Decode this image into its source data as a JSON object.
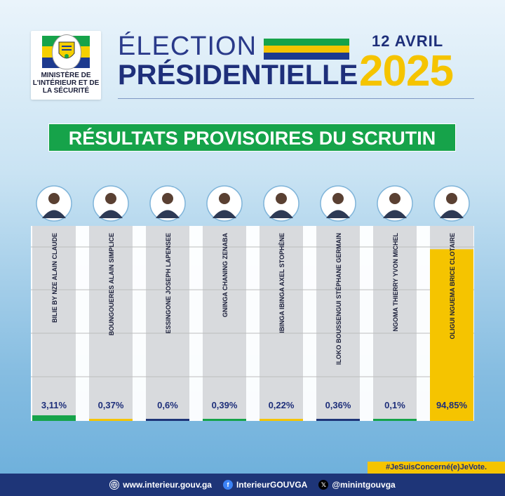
{
  "logo": {
    "seal_text": "RÉPUBLIQUE GABONAISE",
    "ministry": "MINISTÈRE DE L'INTÉRIEUR ET DE LA SÉCURITÉ"
  },
  "header": {
    "title_line1": "ÉLECTION",
    "title_line2": "PRÉSIDENTIELLE",
    "date": "12 AVRIL",
    "year": "2025"
  },
  "colors": {
    "green": "#16a34a",
    "yellow": "#f5c400",
    "blue": "#1d3a8f",
    "navy": "#1e3578"
  },
  "chart_data": {
    "type": "bar",
    "title": "RÉSULTATS PROVISOIRES DU SCRUTIN",
    "unit": "%",
    "categories": [
      "BILIE BY NZE ALAIN CLAUDE",
      "BOUNGOUERES ALAIN SIMPLICE",
      "ESSINGONE JOSEPH LAPENSEE",
      "GNINGA CHANING ZENABA",
      "IBINGA IBINGA AXEL STOPHÈNE",
      "ILOKO BOUSSENGUI STÉPHANE GERMAIN",
      "NGOMA THIERRY YVON MICHEL",
      "OLIGUI NGUEMA BRICE CLOTAIRE"
    ],
    "values": [
      3.11,
      0.37,
      0.6,
      0.39,
      0.22,
      0.36,
      0.1,
      94.85
    ],
    "labels": [
      "3,11%",
      "0,37%",
      "0,6%",
      "0,39%",
      "0,22%",
      "0,36%",
      "0,1%",
      "94,85%"
    ],
    "bar_colors": [
      "#16a34a",
      "#f5c400",
      "#1e3578",
      "#16a34a",
      "#f5c400",
      "#1e3578",
      "#16a34a",
      "#f5c400"
    ],
    "ylim": [
      0,
      100
    ]
  },
  "hashtag": "#JeSuisConcerné(e)JeVote.",
  "footer": {
    "website": "www.interieur.gouv.ga",
    "facebook": "InterieurGOUVGA",
    "twitter": "@minintgouvga"
  }
}
